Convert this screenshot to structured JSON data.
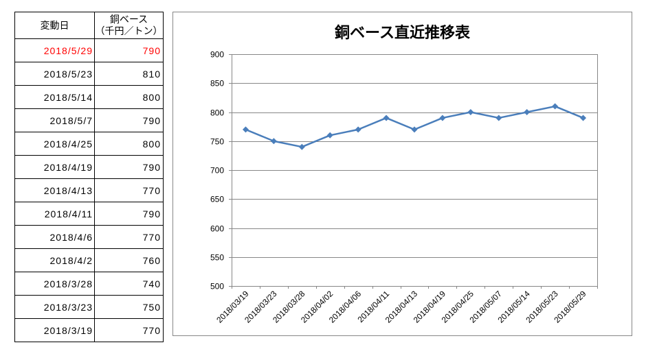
{
  "table": {
    "header_date": "変動日",
    "header_price_line1": "銅ベース",
    "header_price_line2": "（千円／トン）",
    "highlight_color": "#ff0000",
    "rows": [
      {
        "date": "2018/5/29",
        "price": 790,
        "highlight": true
      },
      {
        "date": "2018/5/23",
        "price": 810
      },
      {
        "date": "2018/5/14",
        "price": 800
      },
      {
        "date": "2018/5/7",
        "price": 790
      },
      {
        "date": "2018/4/25",
        "price": 800
      },
      {
        "date": "2018/4/19",
        "price": 790
      },
      {
        "date": "2018/4/13",
        "price": 770
      },
      {
        "date": "2018/4/11",
        "price": 790
      },
      {
        "date": "2018/4/6",
        "price": 770
      },
      {
        "date": "2018/4/2",
        "price": 760
      },
      {
        "date": "2018/3/28",
        "price": 740
      },
      {
        "date": "2018/3/23",
        "price": 750
      },
      {
        "date": "2018/3/19",
        "price": 770
      }
    ]
  },
  "chart_data": {
    "type": "line",
    "title": "銅ベース直近推移表",
    "categories": [
      "2018/03/19",
      "2018/03/23",
      "2018/03/28",
      "2018/04/02",
      "2018/04/06",
      "2018/04/11",
      "2018/04/13",
      "2018/04/19",
      "2018/04/25",
      "2018/05/07",
      "2018/05/14",
      "2018/05/23",
      "2018/05/29"
    ],
    "series": [
      {
        "values": [
          770,
          750,
          740,
          760,
          770,
          790,
          770,
          790,
          800,
          790,
          800,
          810,
          790
        ],
        "color": "#4a7ebb"
      }
    ],
    "ylim": [
      500,
      900
    ],
    "yticks": [
      500,
      550,
      600,
      650,
      700,
      750,
      800,
      850,
      900
    ],
    "grid": true,
    "gridline_color": "#868686"
  }
}
